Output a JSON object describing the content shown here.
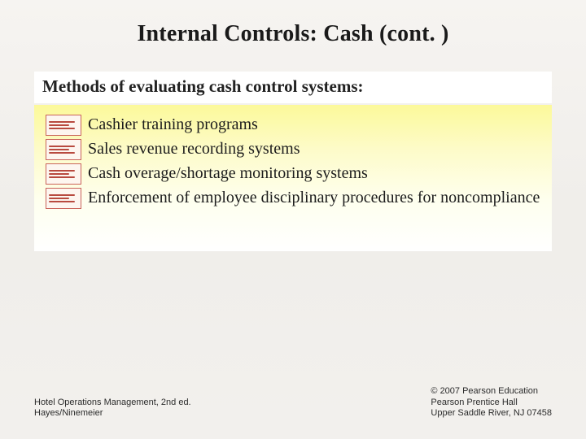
{
  "title": "Internal Controls: Cash (cont. )",
  "subtitle": "Methods of evaluating cash control systems:",
  "bullets": [
    "Cashier training programs",
    "Sales revenue recording systems",
    "Cash overage/shortage monitoring systems",
    "Enforcement of employee disciplinary procedures for noncompliance"
  ],
  "footer": {
    "left": [
      "Hotel Operations Management, 2nd ed.",
      "Hayes/Ninemeier"
    ],
    "right": [
      "© 2007 Pearson Education",
      "Pearson Prentice Hall",
      "Upper Saddle River, NJ 07458"
    ]
  },
  "style": {
    "title_fontsize": 28,
    "subtitle_fontsize": 21,
    "bullet_fontsize": 20,
    "footer_fontsize": 11,
    "title_color": "#1a1a1a",
    "text_color": "#1c1c1c",
    "subtitle_bg": "#ffffff",
    "content_gradient_top": "#fcf99a",
    "content_gradient_bottom": "#ffffff",
    "page_bg": "#f5f3f0",
    "bullet_icon_border": "#c9635a",
    "bullet_icon_line": "#b84a3f"
  }
}
